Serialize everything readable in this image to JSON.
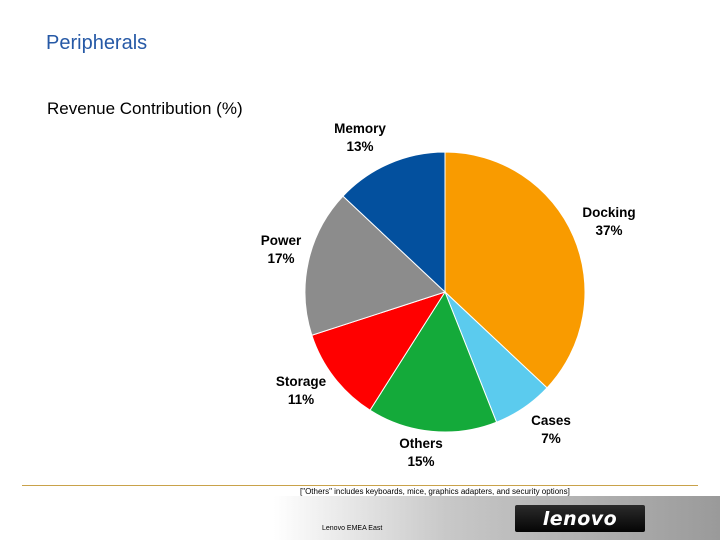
{
  "title": "Peripherals",
  "chart_data": {
    "type": "pie",
    "title": "Revenue Contribution (%)",
    "slices": [
      {
        "label": "Docking",
        "value": 37,
        "pct_label": "37%",
        "color": "#f99b00"
      },
      {
        "label": "Cases",
        "value": 7,
        "pct_label": "7%",
        "color": "#5bcbee"
      },
      {
        "label": "Others",
        "value": 15,
        "pct_label": "15%",
        "color": "#14aa3a"
      },
      {
        "label": "Storage",
        "value": 11,
        "pct_label": "11%",
        "color": "#ff0000"
      },
      {
        "label": "Power",
        "value": 17,
        "pct_label": "17%",
        "color": "#8c8c8c"
      },
      {
        "label": "Memory",
        "value": 13,
        "pct_label": "13%",
        "color": "#03509e"
      }
    ],
    "footnote": "[\"Others\" includes keyboards, mice, graphics adapters, and security options]"
  },
  "footer": {
    "text": "Lenovo EMEA East",
    "logo_text": "lenovo"
  }
}
